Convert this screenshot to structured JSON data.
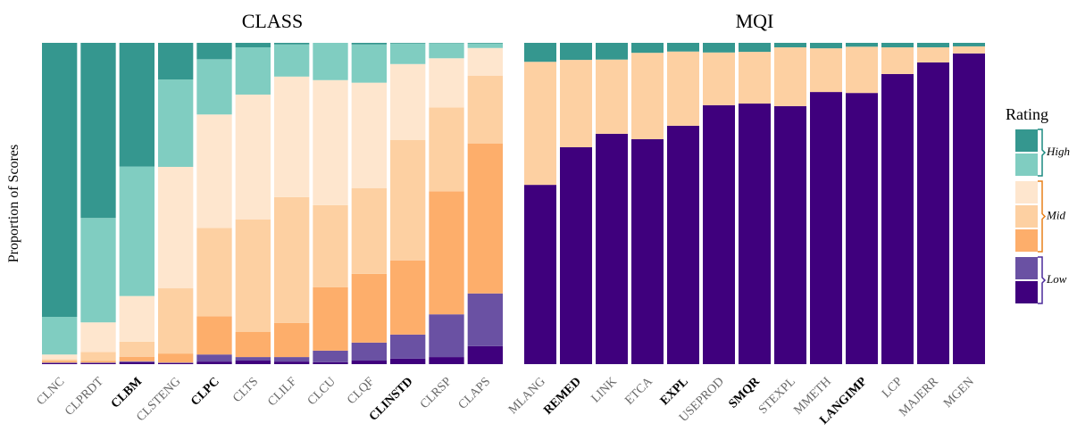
{
  "chart_data": [
    {
      "type": "bar",
      "stacked": true,
      "title": "CLASS",
      "ylabel": "Proportion of Scores",
      "ylim": [
        0,
        1
      ],
      "categories": [
        "CLNC",
        "CLPRDT",
        "CLBM",
        "CLSTENG",
        "CLPC",
        "CLTS",
        "CLILF",
        "CLCU",
        "CLQF",
        "CLINSTD",
        "CLRSP",
        "CLAPS"
      ],
      "bold": [
        false,
        false,
        true,
        false,
        true,
        false,
        false,
        false,
        false,
        true,
        false,
        false
      ],
      "series": [
        {
          "color": "#3f007d",
          "group": 2,
          "values": [
            0.003,
            0.003,
            0.006,
            0.003,
            0.008,
            0.011,
            0.008,
            0.006,
            0.011,
            0.017,
            0.022,
            0.056
          ]
        },
        {
          "color": "#6a51a3",
          "group": 2,
          "values": [
            0.002,
            0.002,
            0.003,
            0.002,
            0.022,
            0.011,
            0.014,
            0.036,
            0.056,
            0.075,
            0.133,
            0.164
          ]
        },
        {
          "color": "#fdae6b",
          "group": 1,
          "values": [
            0.005,
            0.005,
            0.014,
            0.028,
            0.119,
            0.078,
            0.106,
            0.197,
            0.214,
            0.231,
            0.383,
            0.467
          ]
        },
        {
          "color": "#fdd0a2",
          "group": 1,
          "values": [
            0.005,
            0.028,
            0.047,
            0.203,
            0.275,
            0.35,
            0.392,
            0.256,
            0.267,
            0.375,
            0.261,
            0.211
          ]
        },
        {
          "color": "#fee6ce",
          "group": 1,
          "values": [
            0.015,
            0.092,
            0.142,
            0.378,
            0.353,
            0.389,
            0.375,
            0.389,
            0.328,
            0.236,
            0.153,
            0.086
          ]
        },
        {
          "color": "#80cdc1",
          "group": 0,
          "values": [
            0.117,
            0.325,
            0.403,
            0.272,
            0.172,
            0.147,
            0.1,
            0.116,
            0.119,
            0.064,
            0.047,
            0.014
          ]
        },
        {
          "color": "#35978f",
          "group": 0,
          "values": [
            0.853,
            0.545,
            0.385,
            0.114,
            0.051,
            0.014,
            0.005,
            0,
            0.005,
            0.002,
            0.001,
            0.002
          ]
        }
      ]
    },
    {
      "type": "bar",
      "stacked": true,
      "title": "MQI",
      "ylim": [
        0,
        1
      ],
      "categories": [
        "MLANG",
        "REMED",
        "LINK",
        "ETCA",
        "EXPL",
        "USEPROD",
        "SMQR",
        "STEXPL",
        "MMETH",
        "LANGIMP",
        "LCP",
        "MAJERR",
        "MGEN"
      ],
      "bold": [
        false,
        true,
        false,
        false,
        true,
        false,
        true,
        false,
        false,
        true,
        false,
        false,
        false
      ],
      "series": [
        {
          "color": "#3f007d",
          "group": 2,
          "values": [
            0.558,
            0.675,
            0.717,
            0.7,
            0.742,
            0.806,
            0.811,
            0.803,
            0.847,
            0.844,
            0.903,
            0.939,
            0.967
          ]
        },
        {
          "color": "#fdd0a2",
          "group": 1,
          "values": [
            0.383,
            0.272,
            0.231,
            0.269,
            0.231,
            0.164,
            0.161,
            0.183,
            0.136,
            0.144,
            0.083,
            0.047,
            0.022
          ]
        },
        {
          "color": "#35978f",
          "group": 0,
          "values": [
            0.059,
            0.053,
            0.052,
            0.031,
            0.027,
            0.03,
            0.028,
            0.014,
            0.017,
            0.012,
            0.014,
            0.014,
            0.011
          ]
        }
      ],
      "legend": {
        "title": "Rating",
        "groups": [
          "High",
          "Mid",
          "Low"
        ],
        "group_colors": [
          [
            "#35978f",
            "#80cdc1"
          ],
          [
            "#fee6ce",
            "#fdd0a2",
            "#fdae6b"
          ],
          [
            "#6a51a3",
            "#3f007d"
          ]
        ],
        "bracket_colors": [
          "#1b8a80",
          "#e8801a",
          "#4b2a9a"
        ]
      }
    }
  ]
}
